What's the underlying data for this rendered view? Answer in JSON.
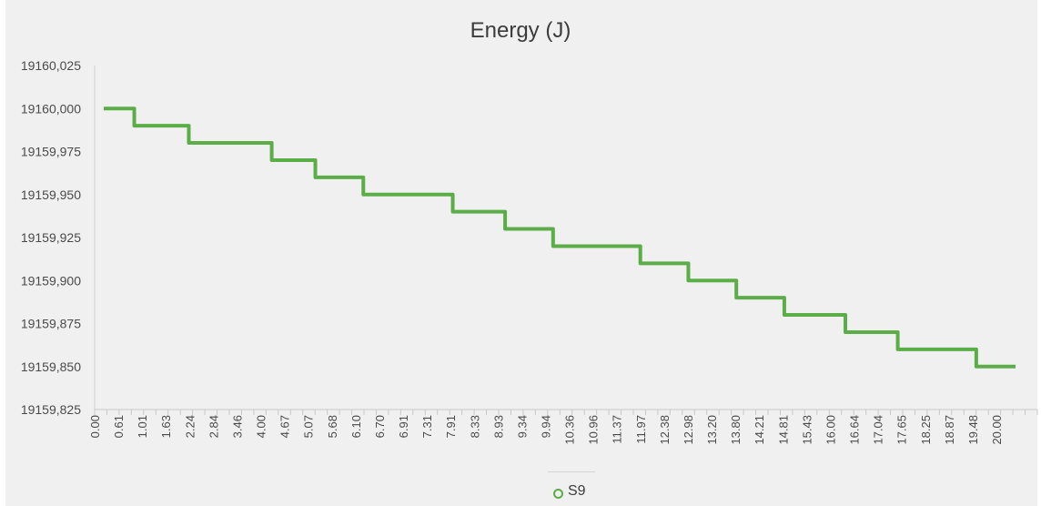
{
  "chart_data": {
    "type": "line",
    "title": "Energy (J)",
    "xlabel": "",
    "ylabel": "",
    "ylim": [
      19159.825,
      19160.025
    ],
    "y_ticks": [
      "19160,025",
      "19160,000",
      "19159,975",
      "19159,950",
      "19159,925",
      "19159,900",
      "19159,875",
      "19159,850",
      "19159,825"
    ],
    "x_tick_labels": [
      "0.00",
      "0.61",
      "1.01",
      "1.63",
      "2.24",
      "2.84",
      "3.46",
      "4.00",
      "4.67",
      "5.07",
      "5.68",
      "6.10",
      "6.70",
      "6.91",
      "7.31",
      "7.91",
      "8.33",
      "8.93",
      "9.34",
      "9.94",
      "10.36",
      "10.96",
      "11.37",
      "11.97",
      "12.38",
      "12.98",
      "13.20",
      "13.80",
      "14.21",
      "14.81",
      "15.43",
      "16.00",
      "16.64",
      "17.04",
      "17.65",
      "18.25",
      "18.87",
      "19.48",
      "20.00"
    ],
    "x_range": [
      0,
      21.4
    ],
    "grid": false,
    "legend_position": "bottom",
    "series": [
      {
        "name": "S9",
        "color": "#5aad47",
        "step_points": [
          {
            "x": 0.0,
            "y": 19160.0
          },
          {
            "x": 0.7,
            "y": 19159.99
          },
          {
            "x": 1.95,
            "y": 19159.98
          },
          {
            "x": 3.85,
            "y": 19159.97
          },
          {
            "x": 4.85,
            "y": 19159.96
          },
          {
            "x": 5.95,
            "y": 19159.95
          },
          {
            "x": 8.0,
            "y": 19159.94
          },
          {
            "x": 9.2,
            "y": 19159.93
          },
          {
            "x": 10.3,
            "y": 19159.92
          },
          {
            "x": 12.3,
            "y": 19159.91
          },
          {
            "x": 13.4,
            "y": 19159.9
          },
          {
            "x": 14.5,
            "y": 19159.89
          },
          {
            "x": 15.6,
            "y": 19159.88
          },
          {
            "x": 17.0,
            "y": 19159.87
          },
          {
            "x": 18.2,
            "y": 19159.86
          },
          {
            "x": 20.0,
            "y": 19159.85
          },
          {
            "x": 20.9,
            "y": 19159.85
          }
        ]
      }
    ]
  }
}
